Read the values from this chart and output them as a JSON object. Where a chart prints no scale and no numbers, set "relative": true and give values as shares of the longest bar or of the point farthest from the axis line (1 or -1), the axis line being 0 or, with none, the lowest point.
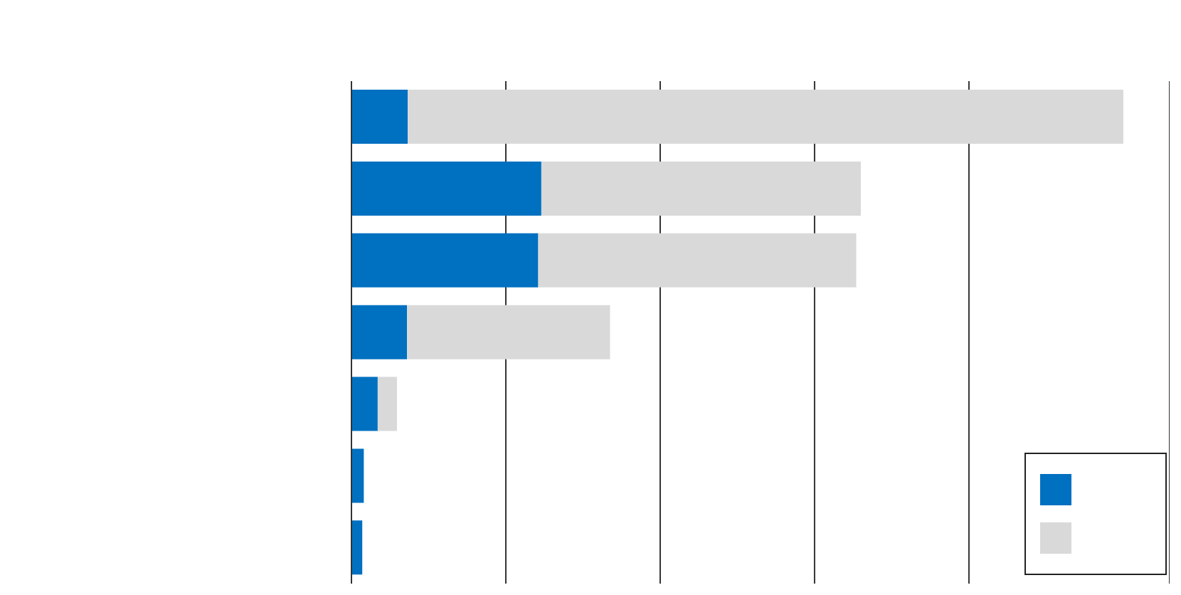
{
  "chart_data": {
    "type": "bar",
    "orientation": "horizontal",
    "stacked": true,
    "relative": true,
    "categories": [
      null,
      null,
      null,
      null,
      null,
      null,
      null
    ],
    "series": [
      {
        "color": "#0070c0",
        "values": [
          0.073,
          0.246,
          0.242,
          0.072,
          0.034,
          0.016,
          0.014
        ]
      },
      {
        "color": "#d9d9d9",
        "values": [
          0.927,
          0.414,
          0.412,
          0.263,
          0.025,
          0,
          0
        ]
      }
    ],
    "grid": "x"
  }
}
